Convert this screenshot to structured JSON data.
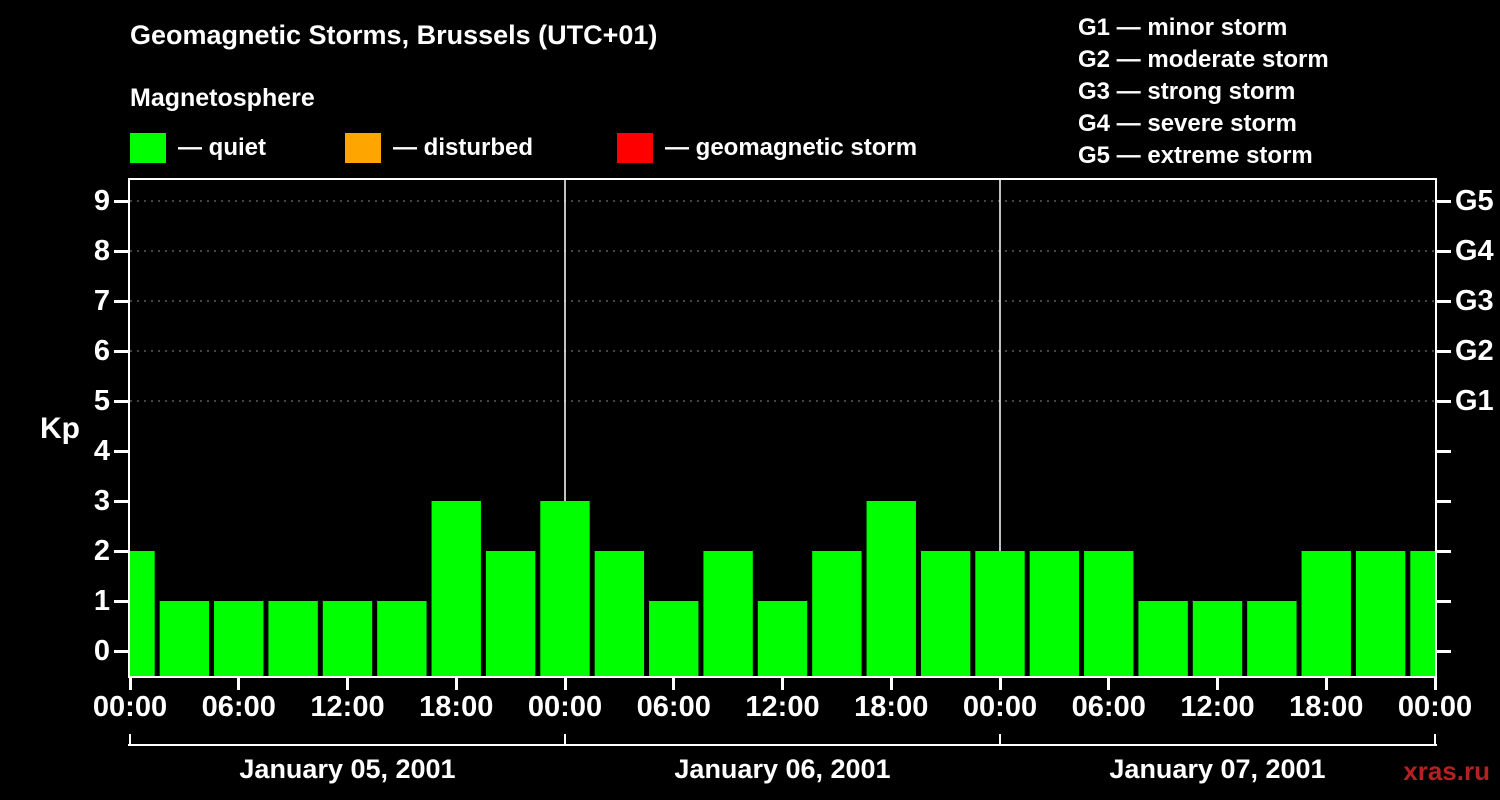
{
  "title": "Geomagnetic Storms, Brussels (UTC+01)",
  "subtitle": "Magnetosphere",
  "watermark": "xras.ru",
  "legend": {
    "items": [
      {
        "label": "— quiet",
        "color": "#00ff00"
      },
      {
        "label": "— disturbed",
        "color": "#ffa500"
      },
      {
        "label": "— geomagnetic storm",
        "color": "#ff0000"
      }
    ]
  },
  "storm_scale": {
    "lines": [
      "G1 — minor storm",
      "G2 — moderate storm",
      "G3 — strong storm",
      "G4 — severe storm",
      "G5 — extreme storm"
    ]
  },
  "chart_data": {
    "type": "bar",
    "title": "Geomagnetic Storms, Brussels (UTC+01)",
    "ylabel": "Kp",
    "ylim": [
      0,
      9.5
    ],
    "y_ticks": [
      0,
      1,
      2,
      3,
      4,
      5,
      6,
      7,
      8,
      9
    ],
    "gridline_kp": [
      5,
      6,
      7,
      8,
      9
    ],
    "right_axis": [
      {
        "kp": 5,
        "label": "G1"
      },
      {
        "kp": 6,
        "label": "G2"
      },
      {
        "kp": 7,
        "label": "G3"
      },
      {
        "kp": 8,
        "label": "G4"
      },
      {
        "kp": 9,
        "label": "G5"
      }
    ],
    "x_hours_range": [
      0,
      72
    ],
    "x_ticks": [
      {
        "hour": 0,
        "label": "00:00"
      },
      {
        "hour": 6,
        "label": "06:00"
      },
      {
        "hour": 12,
        "label": "12:00"
      },
      {
        "hour": 18,
        "label": "18:00"
      },
      {
        "hour": 24,
        "label": "00:00"
      },
      {
        "hour": 30,
        "label": "06:00"
      },
      {
        "hour": 36,
        "label": "12:00"
      },
      {
        "hour": 42,
        "label": "18:00"
      },
      {
        "hour": 48,
        "label": "00:00"
      },
      {
        "hour": 54,
        "label": "06:00"
      },
      {
        "hour": 60,
        "label": "12:00"
      },
      {
        "hour": 66,
        "label": "18:00"
      },
      {
        "hour": 72,
        "label": "00:00"
      }
    ],
    "day_boundary_hours": [
      0,
      24,
      48,
      72
    ],
    "days": [
      {
        "label": "January 05, 2001",
        "center_hour": 12
      },
      {
        "label": "January 06, 2001",
        "center_hour": 36
      },
      {
        "label": "January 07, 2001",
        "center_hour": 60
      }
    ],
    "series_start_hour": 0,
    "interval_hours": 3,
    "kp_values": [
      2,
      1,
      1,
      1,
      1,
      1,
      3,
      2,
      3,
      2,
      1,
      2,
      1,
      2,
      3,
      2,
      2,
      2,
      2,
      1,
      1,
      1,
      2,
      2,
      2
    ],
    "bar_colors": {
      "quiet": "#00ff00",
      "disturbed": "#ffa500",
      "storm": "#ff0000"
    },
    "thresholds": {
      "disturbed_min": 4,
      "storm_min": 5
    },
    "grid": "dashed horizontal at G-levels only",
    "legend_position": "top-left"
  }
}
